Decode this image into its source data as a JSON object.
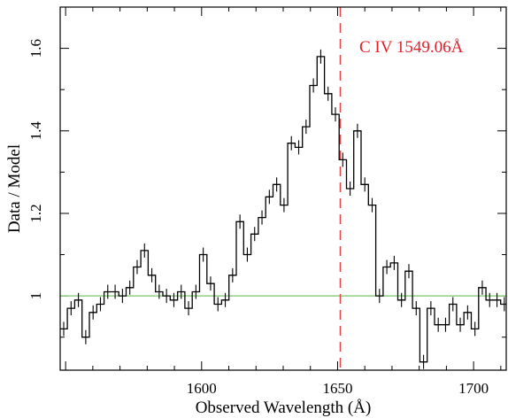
{
  "chart_data": {
    "type": "line",
    "xlabel": "Observed Wavelength (Å)",
    "ylabel": "Data / Model",
    "xlim": [
      1548,
      1712
    ],
    "ylim": [
      0.82,
      1.7
    ],
    "xticks": [
      1600,
      1650,
      1700
    ],
    "yticks": [
      1,
      1.2,
      1.4,
      1.6
    ],
    "grid": false,
    "reference_line": {
      "y": 1.0,
      "color": "#7ac66a"
    },
    "marker_line": {
      "x": 1651,
      "color": "#e04a4a",
      "style": "dashed"
    },
    "annotation": {
      "text": "C IV 1549.06Å",
      "color": "#e0202a"
    },
    "series": [
      {
        "color": "#000000",
        "bin_width": 2.7,
        "x": [
          1549.3,
          1552,
          1554.7,
          1557.4,
          1560.1,
          1562.8,
          1565.5,
          1568.2,
          1570.9,
          1573.6,
          1576.3,
          1579,
          1581.7,
          1584.4,
          1587.1,
          1589.8,
          1592.5,
          1595.2,
          1597.9,
          1600.6,
          1603.3,
          1606,
          1608.7,
          1611.4,
          1614.1,
          1616.8,
          1619.5,
          1622.2,
          1624.9,
          1627.6,
          1630.3,
          1633,
          1635.7,
          1638.4,
          1641.1,
          1643.8,
          1646.5,
          1649.2,
          1651.9,
          1654.6,
          1657.3,
          1660,
          1662.7,
          1665.4,
          1668.1,
          1670.8,
          1673.5,
          1676.2,
          1678.9,
          1681.6,
          1684.3,
          1687,
          1689.7,
          1692.4,
          1695.1,
          1697.8,
          1700.5,
          1703.2,
          1705.9,
          1708.6,
          1711.3
        ],
        "values": [
          0.92,
          0.97,
          0.99,
          0.9,
          0.96,
          0.98,
          1.01,
          1.01,
          1.0,
          1.02,
          1.07,
          1.11,
          1.05,
          1.01,
          1.0,
          0.99,
          1.01,
          0.97,
          1.01,
          1.1,
          1.03,
          0.98,
          0.99,
          1.05,
          1.18,
          1.1,
          1.15,
          1.19,
          1.24,
          1.27,
          1.22,
          1.37,
          1.36,
          1.41,
          1.51,
          1.58,
          1.49,
          1.44,
          1.33,
          1.26,
          1.4,
          1.27,
          1.22,
          1.0,
          1.07,
          1.08,
          0.99,
          1.06,
          0.97,
          0.84,
          0.97,
          0.93,
          0.93,
          0.98,
          0.93,
          0.96,
          0.92,
          1.02,
          0.99,
          0.99,
          0.98
        ]
      }
    ]
  }
}
